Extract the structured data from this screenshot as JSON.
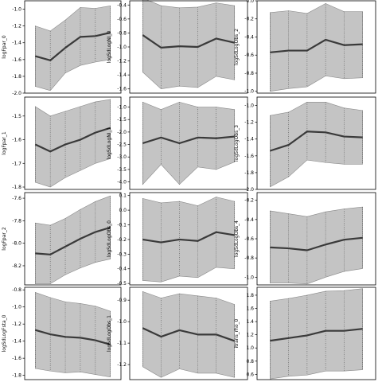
{
  "chart_data": [
    {
      "type": "area",
      "ylabel": "logFpar_0",
      "ylim": [
        -2.0,
        -0.9
      ],
      "yticks": [
        -1.0,
        -1.2,
        -1.4,
        -1.6,
        -1.8,
        -2.0
      ],
      "tick_labels": [
        "-1.0",
        "-1.2",
        "-1.4",
        "-1.6",
        "-1.8",
        "-2.0"
      ],
      "x": [
        1,
        2,
        3,
        4,
        5,
        6
      ],
      "mean": [
        -1.56,
        -1.61,
        -1.46,
        -1.33,
        -1.32,
        -1.28
      ],
      "lower": [
        -1.92,
        -1.97,
        -1.76,
        -1.67,
        -1.63,
        -1.6
      ],
      "upper": [
        -1.2,
        -1.26,
        -1.13,
        -0.98,
        -0.99,
        -0.96
      ]
    },
    {
      "type": "area",
      "ylabel": "logSdLogNI_0",
      "ylim": [
        -1.66,
        -0.34
      ],
      "yticks": [
        -0.4,
        -0.6,
        -0.8,
        -1.0,
        -1.2,
        -1.4,
        -1.6
      ],
      "tick_labels": [
        "-0.4",
        "-0.6",
        "-0.8",
        "-1.0",
        "-1.2",
        "-1.4",
        "-1.6"
      ],
      "x": [
        1,
        2,
        3,
        4,
        5,
        6
      ],
      "mean": [
        -0.83,
        -1.01,
        -0.99,
        -1.0,
        -0.88,
        -0.94
      ],
      "lower": [
        -1.36,
        -1.6,
        -1.56,
        -1.58,
        -1.42,
        -1.47
      ],
      "upper": [
        -0.3,
        -0.41,
        -0.44,
        -0.43,
        -0.37,
        -0.41
      ]
    },
    {
      "type": "area",
      "ylabel": "logSdLogObs_2",
      "ylim": [
        -1.02,
        0.0
      ],
      "yticks": [
        0.0,
        -0.2,
        -0.4,
        -0.6,
        -0.8,
        -1.0
      ],
      "tick_labels": [
        "0.0",
        "-0.2",
        "-0.4",
        "-0.6",
        "-0.8",
        "-1.0"
      ],
      "x": [
        1,
        2,
        3,
        4,
        5,
        6
      ],
      "mean": [
        -0.57,
        -0.55,
        -0.55,
        -0.43,
        -0.49,
        -0.48
      ],
      "lower": [
        -1.0,
        -0.97,
        -0.95,
        -0.83,
        -0.86,
        -0.85
      ],
      "upper": [
        -0.13,
        -0.11,
        -0.14,
        -0.03,
        -0.12,
        -0.12
      ]
    },
    {
      "type": "area",
      "ylabel": "logFpar_1",
      "ylim": [
        -1.81,
        -1.42
      ],
      "yticks": [
        -1.5,
        -1.6,
        -1.7,
        -1.8
      ],
      "tick_labels": [
        "-1.5",
        "-1.6",
        "-1.7",
        "-1.8"
      ],
      "x": [
        1,
        2,
        3,
        4,
        5,
        6
      ],
      "mean": [
        -1.62,
        -1.65,
        -1.62,
        -1.6,
        -1.57,
        -1.55
      ],
      "lower": [
        -1.78,
        -1.8,
        -1.76,
        -1.73,
        -1.7,
        -1.68
      ],
      "upper": [
        -1.46,
        -1.5,
        -1.48,
        -1.46,
        -1.44,
        -1.43
      ]
    },
    {
      "type": "area",
      "ylabel": "logSdLogNI_1",
      "ylim": [
        -4.3,
        -0.6
      ],
      "yticks": [
        -1.0,
        -1.5,
        -2.0,
        -2.5,
        -3.0,
        -3.5,
        -4.0
      ],
      "tick_labels": [
        "-1.0",
        "-1.5",
        "-2.0",
        "-2.5",
        "-3.0",
        "-3.5",
        "-4.0"
      ],
      "x": [
        1,
        2,
        3,
        4,
        5,
        6
      ],
      "mean": [
        -2.45,
        -2.22,
        -2.45,
        -2.22,
        -2.25,
        -2.18
      ],
      "lower": [
        -4.1,
        -3.3,
        -4.1,
        -3.4,
        -3.5,
        -3.2
      ],
      "upper": [
        -0.8,
        -1.1,
        -0.8,
        -1.0,
        -1.0,
        -1.1
      ]
    },
    {
      "type": "area",
      "ylabel": "logSdLogObs_3",
      "ylim": [
        -2.0,
        -0.9
      ],
      "yticks": [
        -1.0,
        -1.2,
        -1.4,
        -1.6,
        -1.8,
        -2.0
      ],
      "tick_labels": [
        "-1.0",
        "-1.2",
        "-1.4",
        "-1.6",
        "-1.8",
        "-2.0"
      ],
      "x": [
        1,
        2,
        3,
        4,
        5,
        6
      ],
      "mean": [
        -1.54,
        -1.47,
        -1.31,
        -1.32,
        -1.37,
        -1.38
      ],
      "lower": [
        -1.97,
        -1.85,
        -1.65,
        -1.68,
        -1.7,
        -1.7
      ],
      "upper": [
        -1.12,
        -1.08,
        -0.96,
        -0.96,
        -1.03,
        -1.06
      ]
    },
    {
      "type": "area",
      "ylabel": "logFpar_2",
      "ylim": [
        -8.37,
        -7.55
      ],
      "yticks": [
        -7.6,
        -7.8,
        -8.0,
        -8.2
      ],
      "tick_labels": [
        "-7.6",
        "-7.8",
        "-8.0",
        "-8.2"
      ],
      "x": [
        1,
        2,
        3,
        4,
        5,
        6
      ],
      "mean": [
        -8.09,
        -8.1,
        -8.03,
        -7.96,
        -7.9,
        -7.86
      ],
      "lower": [
        -8.36,
        -8.36,
        -8.28,
        -8.22,
        -8.17,
        -8.14
      ],
      "upper": [
        -7.82,
        -7.84,
        -7.78,
        -7.7,
        -7.63,
        -7.58
      ]
    },
    {
      "type": "area",
      "ylabel": "logSdLogObs_0",
      "ylim": [
        -0.51,
        0.12
      ],
      "yticks": [
        0.1,
        0.0,
        -0.1,
        -0.2,
        -0.3,
        -0.4,
        -0.5
      ],
      "tick_labels": [
        "0.1",
        "0.0",
        "-0.1",
        "-0.2",
        "-0.3",
        "-0.4",
        "-0.5"
      ],
      "x": [
        1,
        2,
        3,
        4,
        5,
        6
      ],
      "mean": [
        -0.2,
        -0.22,
        -0.2,
        -0.21,
        -0.15,
        -0.17
      ],
      "lower": [
        -0.48,
        -0.49,
        -0.45,
        -0.46,
        -0.39,
        -0.4
      ],
      "upper": [
        0.08,
        0.05,
        0.06,
        0.03,
        0.09,
        0.06
      ]
    },
    {
      "type": "area",
      "ylabel": "logSdLogObs_4",
      "ylim": [
        -1.08,
        -0.12
      ],
      "yticks": [
        -0.2,
        -0.4,
        -0.6,
        -0.8,
        -1.0
      ],
      "tick_labels": [
        "-0.2",
        "-0.4",
        "-0.6",
        "-0.8",
        "-1.0"
      ],
      "x": [
        1,
        2,
        3,
        4,
        5,
        6
      ],
      "mean": [
        -0.69,
        -0.7,
        -0.72,
        -0.66,
        -0.61,
        -0.59
      ],
      "lower": [
        -1.06,
        -1.06,
        -1.07,
        -1.0,
        -0.94,
        -0.91
      ],
      "upper": [
        -0.31,
        -0.34,
        -0.37,
        -0.32,
        -0.29,
        -0.27
      ]
    },
    {
      "type": "area",
      "ylabel": "logSdLogFsta_0",
      "ylim": [
        -1.85,
        -0.77
      ],
      "yticks": [
        -0.8,
        -1.0,
        -1.2,
        -1.4,
        -1.6,
        -1.8
      ],
      "tick_labels": [
        "-0.8",
        "-1.0",
        "-1.2",
        "-1.4",
        "-1.6",
        "-1.8"
      ],
      "x": [
        1,
        2,
        3,
        4,
        5,
        6
      ],
      "mean": [
        -1.27,
        -1.32,
        -1.35,
        -1.36,
        -1.39,
        -1.44
      ],
      "lower": [
        -1.72,
        -1.75,
        -1.77,
        -1.76,
        -1.79,
        -1.82
      ],
      "upper": [
        -0.83,
        -0.89,
        -0.94,
        -0.96,
        -0.99,
        -1.05
      ]
    },
    {
      "type": "area",
      "ylabel": "logSdLogObs_1",
      "ylim": [
        -1.27,
        -0.84
      ],
      "yticks": [
        -0.9,
        -1.0,
        -1.1,
        -1.2
      ],
      "tick_labels": [
        "-0.9",
        "-1.0",
        "-1.1",
        "-1.2"
      ],
      "x": [
        1,
        2,
        3,
        4,
        5,
        6
      ],
      "mean": [
        -1.03,
        -1.07,
        -1.04,
        -1.06,
        -1.06,
        -1.09
      ],
      "lower": [
        -1.21,
        -1.26,
        -1.22,
        -1.24,
        -1.24,
        -1.26
      ],
      "upper": [
        -0.86,
        -0.89,
        -0.87,
        -0.88,
        -0.89,
        -0.92
      ]
    },
    {
      "type": "area",
      "ylabel": "itrans_rho_0",
      "ylim": [
        0.52,
        1.92
      ],
      "yticks": [
        1.8,
        1.6,
        1.4,
        1.2,
        1.0,
        0.8,
        0.6
      ],
      "tick_labels": [
        "1.8",
        "1.6",
        "1.4",
        "1.2",
        "1.0",
        "0.8",
        "0.6"
      ],
      "x": [
        1,
        2,
        3,
        4,
        5,
        6
      ],
      "mean": [
        1.11,
        1.15,
        1.19,
        1.26,
        1.26,
        1.29
      ],
      "lower": [
        0.53,
        0.57,
        0.59,
        0.65,
        0.65,
        0.67
      ],
      "upper": [
        1.71,
        1.75,
        1.8,
        1.86,
        1.87,
        1.9
      ]
    }
  ]
}
